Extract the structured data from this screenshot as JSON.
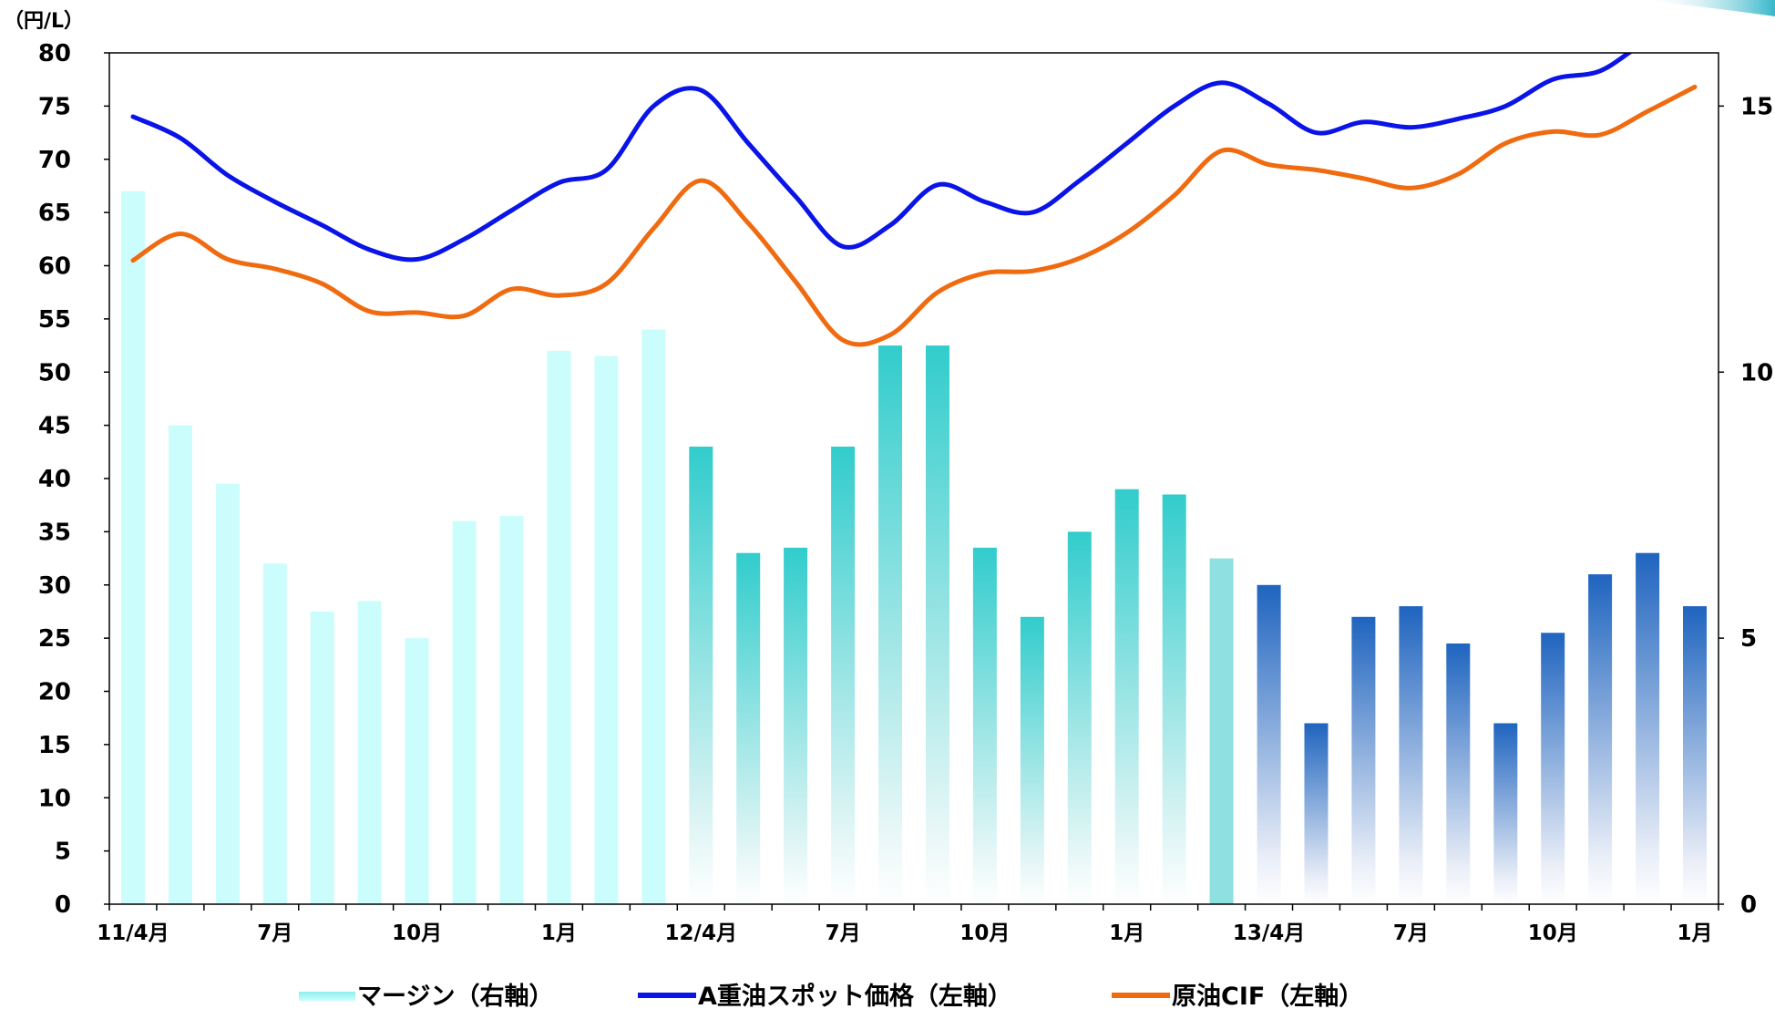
{
  "chart_data": {
    "type": "bar+line",
    "left_axis": {
      "unit": "（円/L）",
      "ylim": [
        0,
        80
      ],
      "ticks": [
        0,
        5,
        10,
        15,
        20,
        25,
        30,
        35,
        40,
        45,
        50,
        55,
        60,
        65,
        70,
        75,
        80
      ]
    },
    "right_axis": {
      "ylim": [
        0,
        16
      ],
      "ticks": [
        0,
        5,
        10,
        15
      ]
    },
    "x_tick_labels": [
      {
        "index": 0,
        "label": "11/4月"
      },
      {
        "index": 3,
        "label": "7月"
      },
      {
        "index": 6,
        "label": "10月"
      },
      {
        "index": 9,
        "label": "1月"
      },
      {
        "index": 12,
        "label": "12/4月"
      },
      {
        "index": 15,
        "label": "7月"
      },
      {
        "index": 18,
        "label": "10月"
      },
      {
        "index": 21,
        "label": "1月"
      },
      {
        "index": 24,
        "label": "13/4月"
      },
      {
        "index": 27,
        "label": "7月"
      },
      {
        "index": 30,
        "label": "10月"
      },
      {
        "index": 33,
        "label": "1月"
      }
    ],
    "categories": [
      "2011/4",
      "2011/5",
      "2011/6",
      "2011/7",
      "2011/8",
      "2011/9",
      "2011/10",
      "2011/11",
      "2011/12",
      "2012/1",
      "2012/2",
      "2012/3",
      "2012/4",
      "2012/5",
      "2012/6",
      "2012/7",
      "2012/8",
      "2012/9",
      "2012/10",
      "2012/11",
      "2012/12",
      "2013/1",
      "2013/2",
      "2013/3",
      "2013/4",
      "2013/5",
      "2013/6",
      "2013/7",
      "2013/8",
      "2013/9",
      "2013/10",
      "2013/11",
      "2013/12",
      "2014/1"
    ],
    "series": [
      {
        "name": "マージン（右軸）",
        "type": "bar",
        "axis": "right",
        "values": [
          13.4,
          9.0,
          7.9,
          6.4,
          5.5,
          5.7,
          5.0,
          7.2,
          7.3,
          10.4,
          10.3,
          10.8,
          8.6,
          6.6,
          6.7,
          8.6,
          10.5,
          10.5,
          6.7,
          5.4,
          7.0,
          7.8,
          7.7,
          6.5,
          6.0,
          3.4,
          5.4,
          5.6,
          4.9,
          3.4,
          5.1,
          6.2,
          6.6,
          5.6
        ]
      },
      {
        "name": "A重油スポット価格（左軸）",
        "type": "line",
        "axis": "left",
        "color": "#0A14E6",
        "values": [
          74.0,
          72.0,
          68.5,
          66.0,
          63.8,
          61.5,
          60.6,
          62.5,
          65.2,
          67.8,
          69.0,
          75.0,
          76.5,
          71.5,
          66.5,
          61.8,
          63.8,
          67.6,
          66.0,
          65.0,
          68.0,
          71.5,
          75.0,
          77.2,
          75.2,
          72.5,
          73.5,
          73.0,
          73.8,
          75.0,
          77.5,
          78.3,
          81.0,
          81.5
        ]
      },
      {
        "name": "原油CIF（左軸）",
        "type": "line",
        "axis": "left",
        "color": "#F06A0F",
        "values": [
          60.5,
          63.0,
          60.6,
          59.7,
          58.3,
          55.7,
          55.6,
          55.3,
          57.8,
          57.2,
          58.3,
          63.5,
          68.0,
          64.0,
          58.5,
          53.0,
          53.5,
          57.5,
          59.3,
          59.5,
          60.7,
          63.1,
          66.6,
          70.8,
          69.5,
          69.0,
          68.2,
          67.3,
          68.6,
          71.5,
          72.6,
          72.3,
          74.5,
          76.8
        ]
      }
    ],
    "colors": {
      "bar_phase1": "#CCFDFD",
      "bar_phase2": "#32CCCC",
      "bar_phase3": "#1F64BF",
      "axis": "#000000"
    },
    "legend": {
      "position": "bottom",
      "entries": [
        "マージン（右軸）",
        "A重油スポット価格（左軸）",
        "原油CIF（左軸）"
      ]
    }
  }
}
